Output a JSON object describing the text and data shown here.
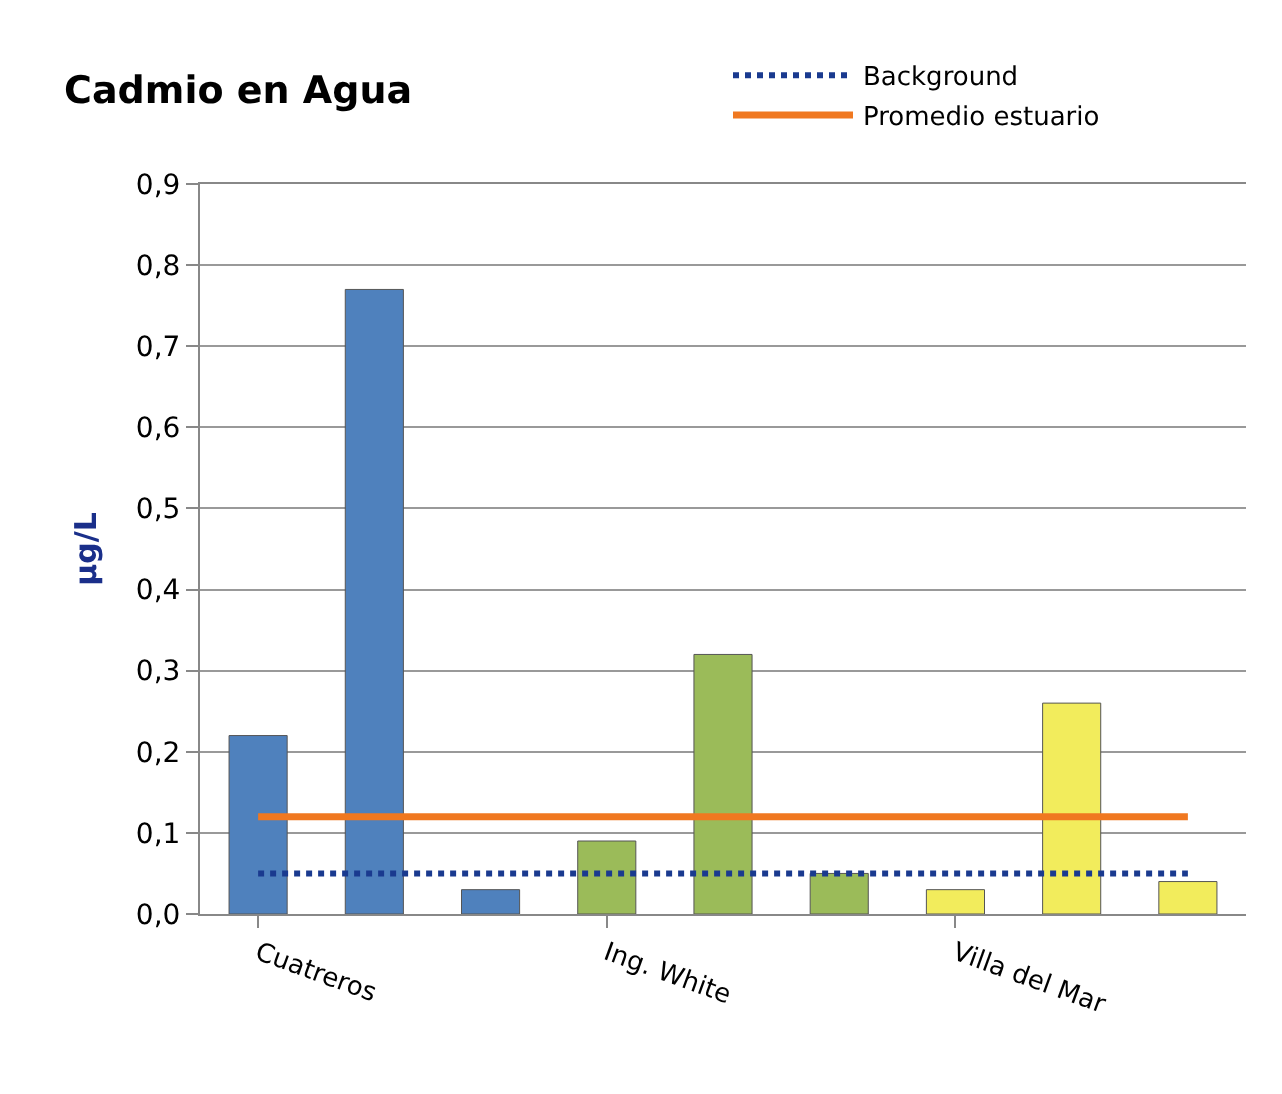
{
  "chart_data": {
    "type": "bar",
    "title": "Cadmio en Agua",
    "ylabel": "µg/L",
    "categories": [
      "Cuatreros",
      null,
      null,
      "Ing. White",
      null,
      null,
      "Villa del Mar",
      null,
      null
    ],
    "series": [
      {
        "colors": [
          "#4f81bd",
          "#4f81bd",
          "#4f81bd",
          "#9bbb59",
          "#9bbb59",
          "#9bbb59",
          "#f2ec5c",
          "#f2ec5c",
          "#f2ec5c"
        ],
        "values": [
          0.22,
          0.77,
          0.03,
          0.09,
          0.32,
          0.05,
          0.03,
          0.26,
          0.04
        ]
      },
      {
        "type": "line",
        "name": "Background",
        "color": "#1a3a8f",
        "line_style": "dotted",
        "values": [
          0.05,
          0.05,
          0.05,
          0.05,
          0.05,
          0.05,
          0.05,
          0.05,
          0.05
        ]
      },
      {
        "type": "line",
        "name": "Promedio estuario",
        "color": "#f07820",
        "line_style": "solid",
        "values": [
          0.12,
          0.12,
          0.12,
          0.12,
          0.12,
          0.12,
          0.12,
          0.12,
          0.12
        ]
      }
    ],
    "ylim": [
      0,
      0.9
    ],
    "yticks": [
      {
        "value": 0,
        "label": "0,0"
      },
      {
        "value": 0.1,
        "label": "0,1"
      },
      {
        "value": 0.2,
        "label": "0,2"
      },
      {
        "value": 0.3,
        "label": "0,3"
      },
      {
        "value": 0.4,
        "label": "0,4"
      },
      {
        "value": 0.5,
        "label": "0,5"
      },
      {
        "value": 0.6,
        "label": "0,6"
      },
      {
        "value": 0.7,
        "label": "0,7"
      },
      {
        "value": 0.8,
        "label": "0,8"
      },
      {
        "value": 0.9,
        "label": "0,9"
      }
    ],
    "grid": "y",
    "legend": "top right"
  }
}
